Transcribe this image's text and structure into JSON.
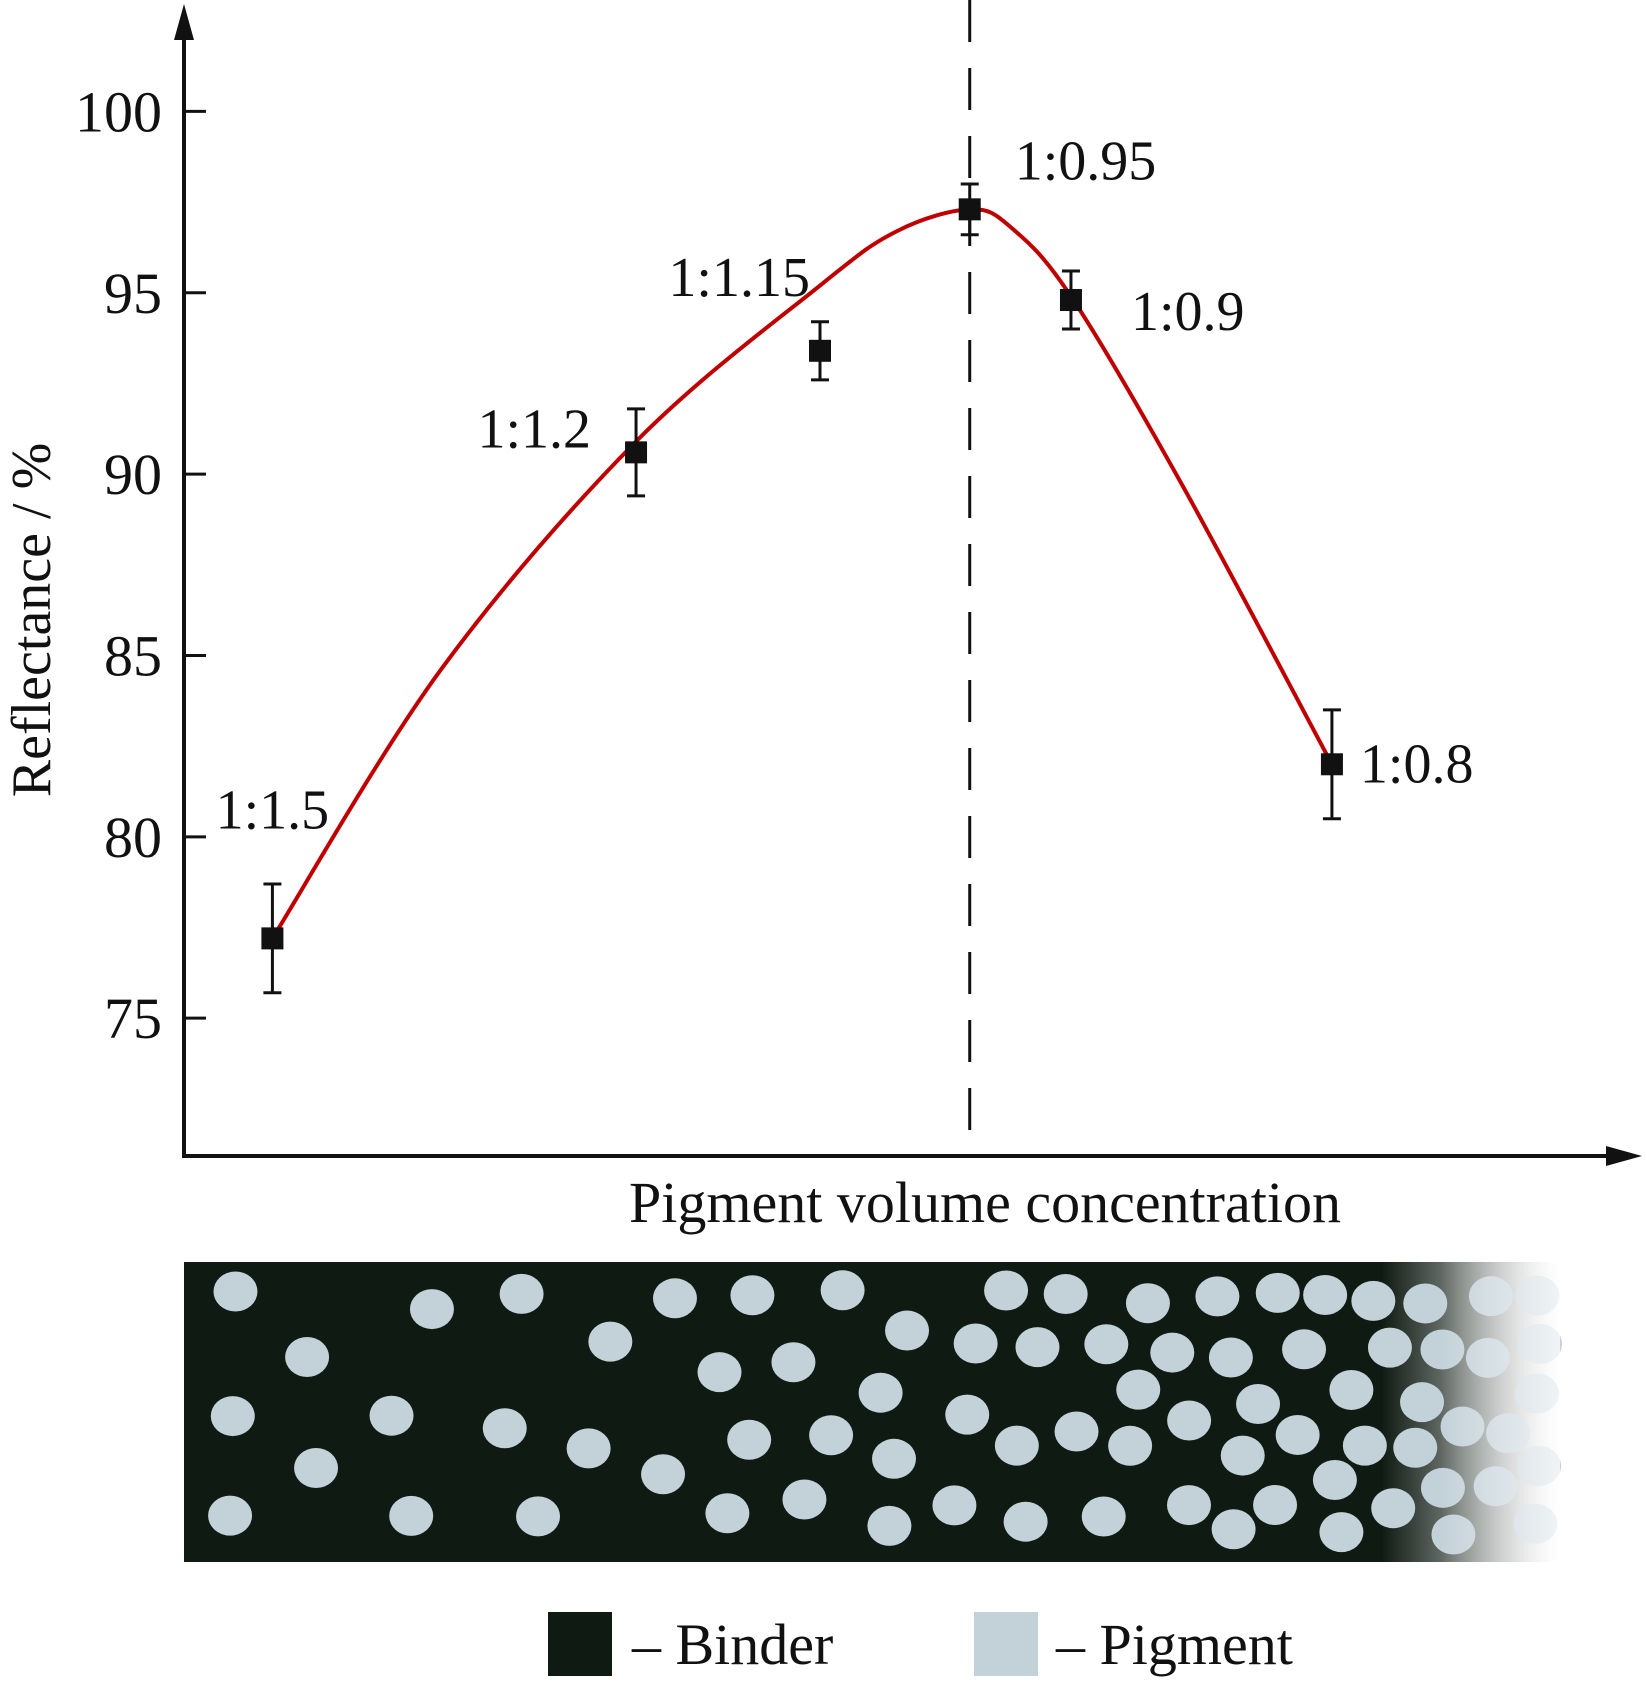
{
  "chart_data": {
    "type": "scatter",
    "ylabel": "Reflectance / %",
    "xlabel": "Pigment volume concentration",
    "y_ticks": [
      "75",
      "80",
      "85",
      "90",
      "95",
      "100"
    ],
    "ylim": [
      71.2,
      102.3
    ],
    "xlim": [
      0,
      100
    ],
    "grid": false,
    "points": [
      {
        "label": "1:1.5",
        "x": 6.2,
        "y": 77.2,
        "err": 1.5
      },
      {
        "label": "1:1.2",
        "x": 31.7,
        "y": 90.6,
        "err": 1.2
      },
      {
        "label": "1:1.15",
        "x": 44.6,
        "y": 93.4,
        "err": 0.8
      },
      {
        "label": "1:0.95",
        "x": 55.1,
        "y": 97.3,
        "err": 0.7
      },
      {
        "label": "1:0.9",
        "x": 62.2,
        "y": 94.8,
        "err": 0.8
      },
      {
        "label": "1:0.8",
        "x": 80.5,
        "y": 82.0,
        "err": 1.5
      }
    ],
    "fit_curve": {
      "color": "#c00000",
      "points": [
        [
          6.2,
          77.2
        ],
        [
          18,
          84.6
        ],
        [
          31.7,
          90.9
        ],
        [
          44.6,
          95.2
        ],
        [
          50,
          96.7
        ],
        [
          55.1,
          97.3
        ],
        [
          58,
          96.8
        ],
        [
          62.2,
          94.9
        ],
        [
          70,
          89.7
        ],
        [
          80.5,
          82.0
        ]
      ]
    },
    "reference_line": {
      "x": 55.1,
      "style": "dashed"
    },
    "legend": [
      {
        "swatch_color": "#0e1a12",
        "label": "– Binder"
      },
      {
        "swatch_color": "#c3d1d8",
        "label": "– Pigment"
      }
    ]
  },
  "diagram": {
    "binder_color": "#0e1a12",
    "pigment_color": "#c3d1d8"
  }
}
